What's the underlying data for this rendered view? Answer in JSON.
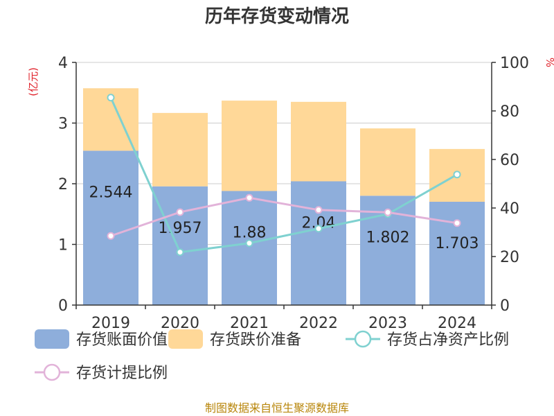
{
  "chart_data": {
    "type": "bar",
    "title": "历年存货变动情况",
    "categories": [
      "2019",
      "2020",
      "2021",
      "2022",
      "2023",
      "2024"
    ],
    "y_left": {
      "unit": "(亿元)",
      "ticks": [
        "0",
        "1",
        "2",
        "3",
        "4"
      ],
      "range": [
        0,
        4
      ]
    },
    "y_right": {
      "unit": "%",
      "ticks": [
        "0",
        "20",
        "40",
        "60",
        "80",
        "100"
      ],
      "range": [
        0,
        100
      ]
    },
    "series": [
      {
        "name": "存货账面价值",
        "kind": "bar-stack",
        "color": "#8eaedb",
        "values": [
          2.544,
          1.957,
          1.88,
          2.04,
          1.802,
          1.703
        ],
        "labels": [
          "2.544",
          "1.957",
          "1.88",
          "2.04",
          "1.802",
          "1.703"
        ]
      },
      {
        "name": "存货跌价准备",
        "kind": "bar-stack",
        "color": "#ffd898",
        "values": [
          1.03,
          1.21,
          1.49,
          1.31,
          1.11,
          0.87
        ]
      },
      {
        "name": "存货占净资产比例",
        "kind": "line",
        "axis": "right",
        "color": "#7fd1d0",
        "values": [
          85.5,
          21.8,
          25.5,
          31.5,
          37.5,
          53.8
        ]
      },
      {
        "name": "存货计提比例",
        "kind": "line",
        "axis": "right",
        "color": "#e2b3d9",
        "values": [
          28.5,
          38.3,
          44.2,
          39.2,
          38.2,
          33.8
        ]
      }
    ],
    "source": "制图数据来自恒生聚源数据库",
    "grid": true,
    "legend_position": "bottom"
  }
}
